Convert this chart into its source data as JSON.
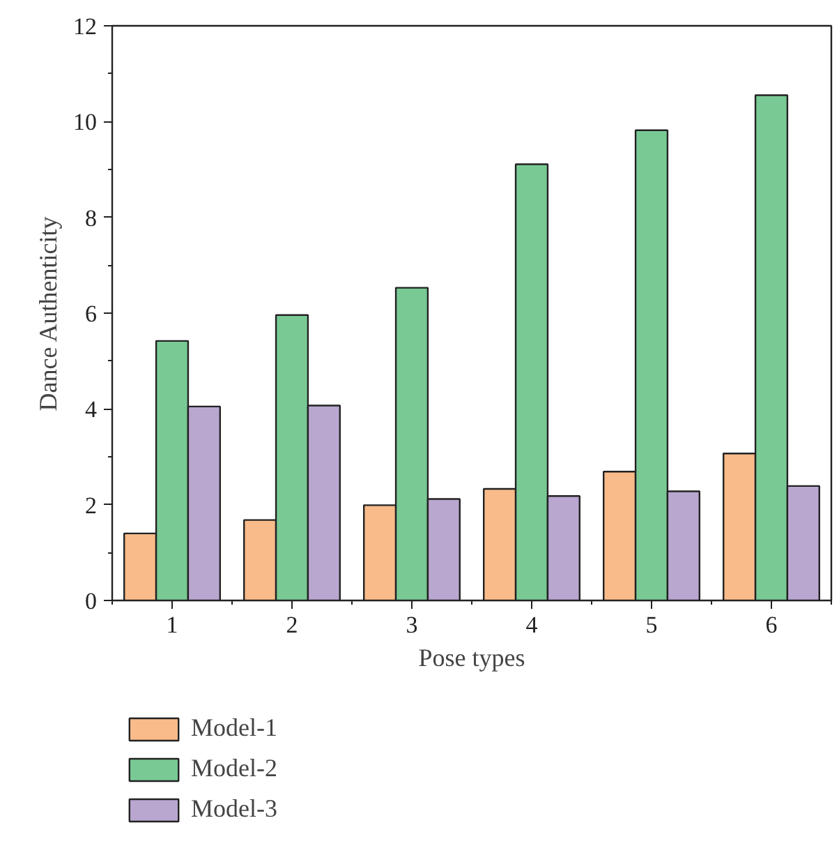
{
  "chart_data": {
    "type": "bar",
    "xlabel": "Pose types",
    "ylabel": "Dance Authenticity",
    "categories": [
      "1",
      "2",
      "3",
      "4",
      "5",
      "6"
    ],
    "series": [
      {
        "name": "Model-1",
        "color": "#f9bb8a",
        "values": [
          1.4,
          1.68,
          1.99,
          2.33,
          2.69,
          3.07
        ]
      },
      {
        "name": "Model-2",
        "color": "#79c995",
        "values": [
          5.42,
          5.96,
          6.53,
          9.11,
          9.82,
          10.55
        ]
      },
      {
        "name": "Model-3",
        "color": "#b9a7d0",
        "values": [
          4.05,
          4.07,
          2.12,
          2.18,
          2.28,
          2.39
        ]
      }
    ],
    "ylim": [
      0,
      12
    ],
    "yticks": [
      0,
      2,
      4,
      6,
      8,
      10,
      12
    ],
    "grid": false,
    "legend": "bottom left"
  }
}
